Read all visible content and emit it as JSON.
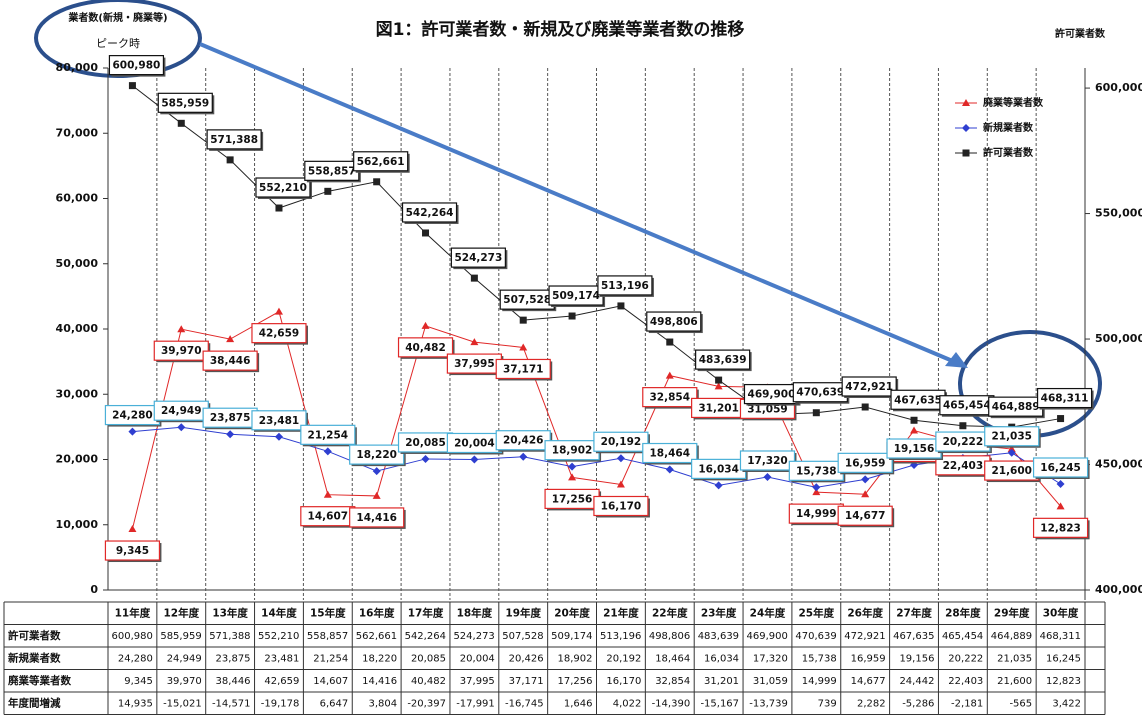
{
  "chart_data": {
    "type": "line",
    "title": "図1：許可業者数・新規及び廃業等業者数の推移",
    "y_label": "業者数(新規・廃業等)",
    "annotation": "ピーク時",
    "y2_label": "許可業者数",
    "categories": [
      "11年度",
      "12年度",
      "13年度",
      "14年度",
      "15年度",
      "16年度",
      "17年度",
      "18年度",
      "19年度",
      "20年度",
      "21年度",
      "22年度",
      "23年度",
      "24年度",
      "25年度",
      "26年度",
      "27年度",
      "28年度",
      "29年度",
      "30年度"
    ],
    "series": [
      {
        "name": "廃業等業者数",
        "color": "#e02828",
        "marker": "triangle",
        "values": [
          9345,
          39970,
          38446,
          42659,
          14607,
          14416,
          40482,
          37995,
          37171,
          17256,
          16170,
          32854,
          31201,
          31059,
          14999,
          14677,
          24442,
          22403,
          21600,
          12823
        ],
        "value_labels": [
          "9,345",
          "39,970",
          "38,446",
          "42,659",
          "14,607",
          "14,416",
          "40,482",
          "37,995",
          "37,171",
          "17,256",
          "16,170",
          "32,854",
          "31,201",
          "31,059",
          "14,999",
          "14,677",
          "24,442",
          "22,403",
          "21,600",
          "12,823"
        ]
      },
      {
        "name": "新規業者数",
        "color": "#2f3fd0",
        "marker": "diamond",
        "values": [
          24280,
          24949,
          23875,
          23481,
          21254,
          18220,
          20085,
          20004,
          20426,
          18902,
          20192,
          18464,
          16034,
          17320,
          15738,
          16959,
          19156,
          20222,
          21035,
          16245
        ],
        "value_labels": [
          "24,280",
          "24,949",
          "23,875",
          "23,481",
          "21,254",
          "18,220",
          "20,085",
          "20,004",
          "20,426",
          "18,902",
          "20,192",
          "18,464",
          "16,034",
          "17,320",
          "15,738",
          "16,959",
          "19,156",
          "20,222",
          "21,035",
          "16,245"
        ]
      },
      {
        "name": "許可業者数",
        "color": "#222222",
        "marker": "square",
        "axis": "y2",
        "values": [
          600980,
          585959,
          571388,
          552210,
          558857,
          562661,
          542264,
          524273,
          507528,
          509174,
          513196,
          498806,
          483639,
          469900,
          470639,
          472921,
          467635,
          465454,
          464889,
          468311
        ],
        "value_labels": [
          "600,980",
          "585,959",
          "571,388",
          "552,210",
          "558,857",
          "562,661",
          "542,264",
          "524,273",
          "507,528",
          "509,174",
          "513,196",
          "498,806",
          "483,639",
          "469,900",
          "470,639",
          "472,921",
          "467,635",
          "465,454",
          "464,889",
          "468,311"
        ]
      }
    ],
    "ylim": [
      0,
      80000
    ],
    "yticks": [
      0,
      {
        "value": 10000,
        "label": "10,000"
      },
      {
        "value": 20000,
        "label": "20,000"
      },
      {
        "value": 30000,
        "label": "30,000"
      },
      {
        "value": 40000,
        "label": "40,000"
      },
      {
        "value": 50000,
        "label": "50,000"
      },
      {
        "value": 60000,
        "label": "60,000"
      },
      {
        "value": 70000,
        "label": "70,000"
      },
      {
        "value": 80000,
        "label": "80,000"
      }
    ],
    "y2lim": [
      400000,
      608000
    ],
    "y2ticks": [
      {
        "value": 400000,
        "label": "400,000"
      },
      {
        "value": 450000,
        "label": "450,000"
      },
      {
        "value": 500000,
        "label": "500,000"
      },
      {
        "value": 550000,
        "label": "550,000"
      },
      {
        "value": 600000,
        "label": "600,000"
      }
    ],
    "legend": "upper right"
  },
  "table": {
    "diff_row_label": "年度間増減",
    "diff": [
      "14,935",
      "-15,021",
      "-14,571",
      "-19,178",
      "6,647",
      "3,804",
      "-20,397",
      "-17,991",
      "-16,745",
      "1,646",
      "4,022",
      "-14,390",
      "-15,167",
      "-13,739",
      "739",
      "2,282",
      "-5,286",
      "-2,181",
      "-565",
      "3,422"
    ]
  }
}
